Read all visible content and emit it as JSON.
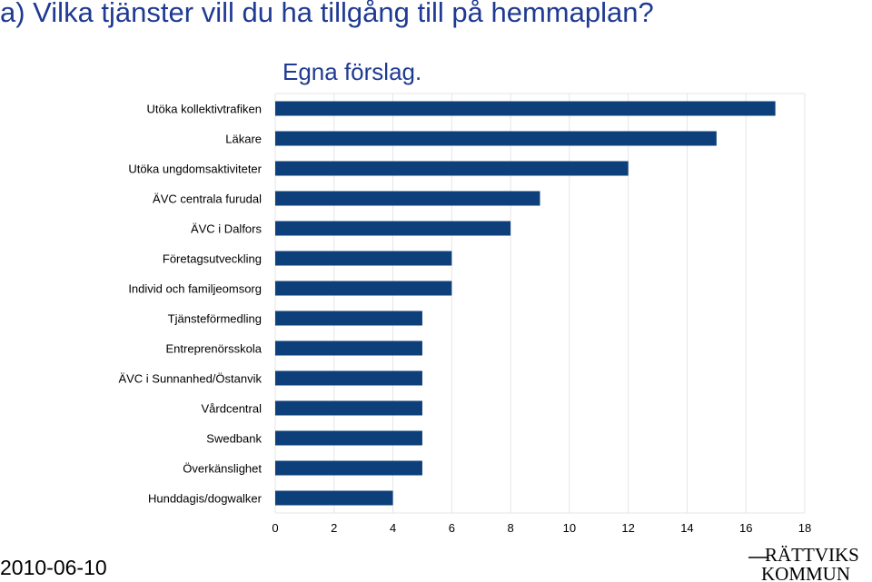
{
  "slide": {
    "title": "a) Vilka tjänster vill du ha tillgång till på hemmaplan?",
    "date": "2010-06-10",
    "logo_text_top": "RÄTTVIKS",
    "logo_text_bottom": "KOMMUN"
  },
  "colors": {
    "bar": "#0d3f7a",
    "title": "#1f3a93",
    "grid": "#e6e6e6"
  },
  "chart_data": {
    "type": "bar",
    "orientation": "horizontal",
    "title": "Egna förslag.",
    "categories": [
      "Utöka kollektivtrafiken",
      "Läkare",
      "Utöka ungdomsaktiviteter",
      "ÄVC centrala furudal",
      "ÄVC i Dalfors",
      "Företagsutveckling",
      "Individ och familjeomsorg",
      "Tjänsteförmedling",
      "Entreprenörsskola",
      "ÄVC i Sunnanhed/Östanvik",
      "Vårdcentral",
      "Swedbank",
      "Överkänslighet",
      "Hunddagis/dogwalker"
    ],
    "values": [
      17,
      15,
      12,
      9,
      8,
      6,
      6,
      5,
      5,
      5,
      5,
      5,
      5,
      4
    ],
    "xlim": [
      0,
      18
    ],
    "xticks": [
      "0",
      "2",
      "4",
      "6",
      "8",
      "10",
      "12",
      "14",
      "16",
      "18"
    ],
    "grid": true,
    "legend": "none"
  }
}
